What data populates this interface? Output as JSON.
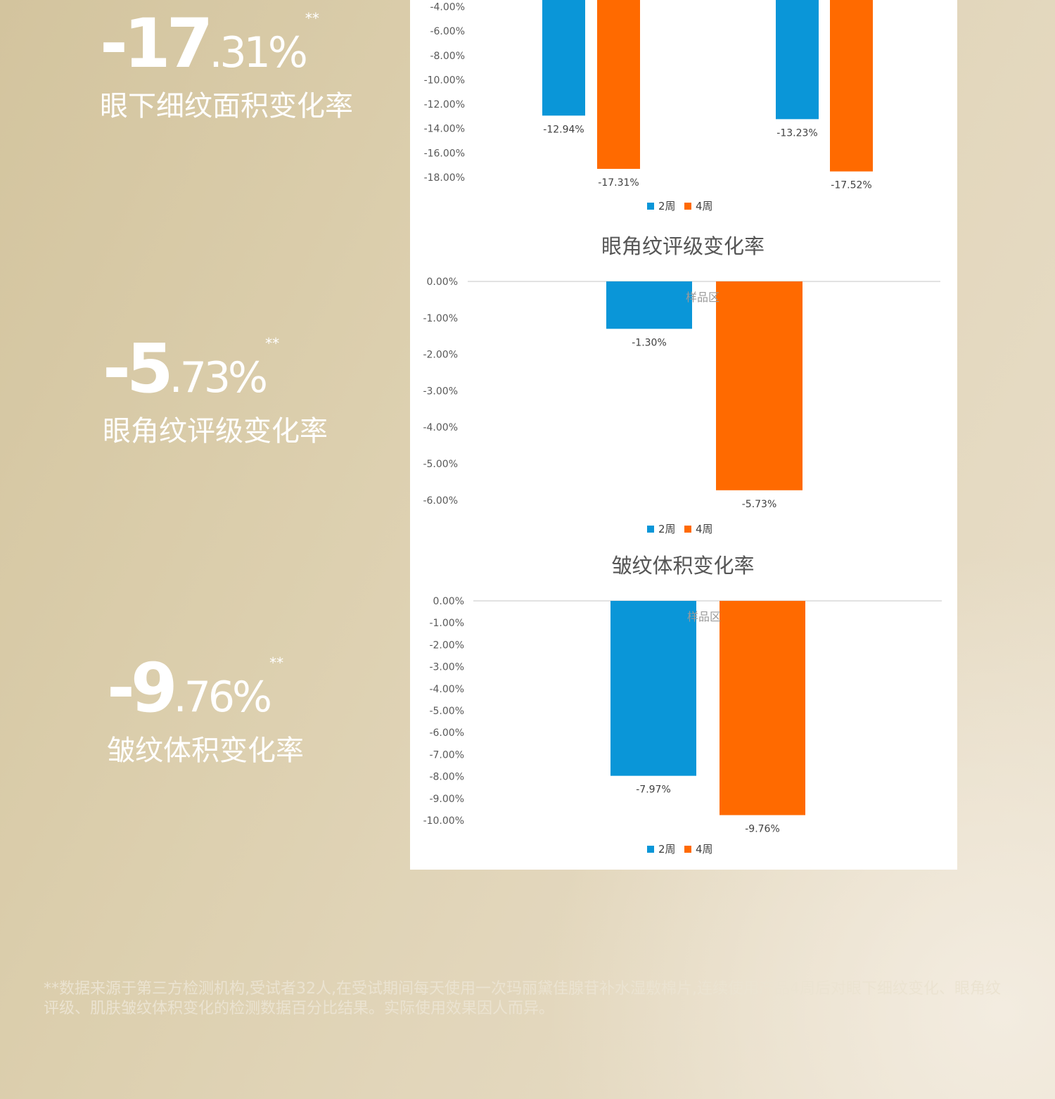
{
  "stats": [
    {
      "int": "-17",
      "dec": ".31%",
      "mark": "**",
      "label": "眼下细纹面积变化率"
    },
    {
      "int": "-5",
      "dec": ".73%",
      "mark": "**",
      "label": "眼角纹评级变化率"
    },
    {
      "int": "-9",
      "dec": ".76%",
      "mark": "**",
      "label": "皱纹体积变化率"
    }
  ],
  "colors": {
    "week2": "#0a96d8",
    "week4": "#ff6a00",
    "gridline": "#d9d9d9"
  },
  "chart_data": [
    {
      "type": "bar",
      "title": "",
      "series": [
        {
          "name": "2周",
          "values": [
            -12.94,
            -13.23
          ]
        },
        {
          "name": "4周",
          "values": [
            -17.31,
            -17.52
          ]
        }
      ],
      "data_labels": [
        [
          "-12.94%",
          "-13.23%"
        ],
        [
          "-17.31%",
          "-17.52%"
        ]
      ],
      "ylim": [
        0,
        -18
      ],
      "y_ticks": [
        "-4.00%",
        "-6.00%",
        "-8.00%",
        "-10.00%",
        "-12.00%",
        "-14.00%",
        "-16.00%",
        "-18.00%"
      ],
      "y_tick_values": [
        -4,
        -6,
        -8,
        -10,
        -12,
        -14,
        -16,
        -18
      ],
      "legend": "bottom",
      "cropped": "top"
    },
    {
      "type": "bar",
      "title": "眼角纹评级变化率",
      "plot_label": "样品区",
      "series": [
        {
          "name": "2周",
          "values": [
            -1.3
          ]
        },
        {
          "name": "4周",
          "values": [
            -5.73
          ]
        }
      ],
      "data_labels": [
        [
          "-1.30%"
        ],
        [
          "-5.73%"
        ]
      ],
      "ylim": [
        0,
        -6
      ],
      "y_ticks": [
        "0.00%",
        "-1.00%",
        "-2.00%",
        "-3.00%",
        "-4.00%",
        "-5.00%",
        "-6.00%"
      ],
      "y_tick_values": [
        0,
        -1,
        -2,
        -3,
        -4,
        -5,
        -6
      ],
      "legend": "bottom"
    },
    {
      "type": "bar",
      "title": "皱纹体积变化率",
      "plot_label": "样品区",
      "series": [
        {
          "name": "2周",
          "values": [
            -7.97
          ]
        },
        {
          "name": "4周",
          "values": [
            -9.76
          ]
        }
      ],
      "data_labels": [
        [
          "-7.97%"
        ],
        [
          "-9.76%"
        ]
      ],
      "ylim": [
        0,
        -10
      ],
      "y_ticks": [
        "0.00%",
        "-1.00%",
        "-2.00%",
        "-3.00%",
        "-4.00%",
        "-5.00%",
        "-6.00%",
        "-7.00%",
        "-8.00%",
        "-9.00%",
        "-10.00%"
      ],
      "y_tick_values": [
        0,
        -1,
        -2,
        -3,
        -4,
        -5,
        -6,
        -7,
        -8,
        -9,
        -10
      ],
      "legend": "bottom"
    }
  ],
  "footnote": "**数据来源于第三方检测机构,受试者32人,在受试期间每天使用一次玛丽黛佳腺苷补水湿敷棉片,连续使用产品4周后对眼下细纹变化、眼角纹评级、肌肤皱纹体积变化的检测数据百分比结果。实际使用效果因人而异。"
}
